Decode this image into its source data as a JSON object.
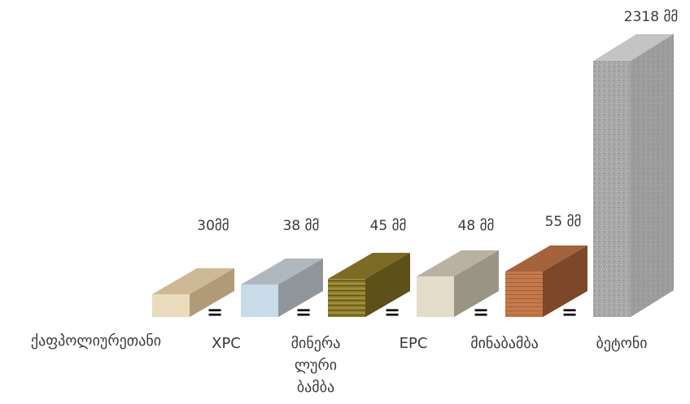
{
  "chart_data": {
    "type": "bar",
    "title": "",
    "xlabel": "",
    "ylabel": "",
    "unit": "მმ",
    "categories": [
      "ქაფპოლიურეთანი",
      "XPC",
      "მინერალური ბამბა",
      "EPC",
      "მინაბამბა",
      "ბეტონი"
    ],
    "category_lines": [
      [
        "ქაფპოლიურეთანი"
      ],
      [
        "XPC"
      ],
      [
        "მინერა",
        "ლური",
        "ბამბა"
      ],
      [
        "EPC"
      ],
      [
        "მინაბამბა"
      ],
      [
        "ბეტონი"
      ]
    ],
    "values": [
      30,
      38,
      45,
      48,
      55,
      2318
    ],
    "value_labels": [
      "30მმ",
      "38 მმ",
      "45 მმ",
      "48 მმ",
      "55 მმ",
      "2318 მმ"
    ],
    "separator_symbol": "=",
    "colors": {
      "foam": [
        "#eadbbd",
        "#cdb995",
        "#b19b77"
      ],
      "xpc": [
        "#c8dbe8",
        "#b0b8bf",
        "#8f979d"
      ],
      "mineral": [
        "#8c7a2a",
        "#7c6b25",
        "#5d5018"
      ],
      "epc": [
        "#e4dccb",
        "#b9b2a3",
        "#9a9486"
      ],
      "glass": [
        "#c5784a",
        "#a5633d",
        "#7d4729"
      ],
      "concrete": [
        "#a9a9a9",
        "#c4c4c4",
        "#8e8e8e"
      ]
    }
  }
}
